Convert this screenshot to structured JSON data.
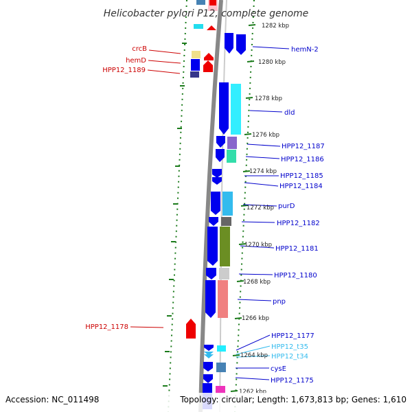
{
  "title": "Helicobacter pylori P12, complete genome",
  "footer": {
    "accession": "Accession: NC_011498",
    "topology": "Topology: circular; Length: 1,673,813 bp; Genes: 1,610"
  },
  "ticks": [
    "1282 kbp",
    "1280 kbp",
    "1278 kbp",
    "1276 kbp",
    "1274 kbp",
    "1272 kbp",
    "1270 kbp",
    "1268 kbp",
    "1266 kbp",
    "1264 kbp",
    "1262 kbp"
  ],
  "left_labels": [
    "crcB",
    "hemD",
    "HPP12_1189",
    "HPP12_1178"
  ],
  "right_labels": [
    "hemN-2",
    "dld",
    "HPP12_1187",
    "HPP12_1186",
    "HPP12_1185",
    "HPP12_1184",
    "purD",
    "HPP12_1182",
    "HPP12_1181",
    "HPP12_1180",
    "pnp",
    "HPP12_1177",
    "HPP12_t35",
    "HPP12_t34",
    "cysE",
    "HPP12_1175"
  ],
  "colors": {
    "forward_gene": "#0000ee",
    "reverse_gene": "#ee0000",
    "trna": "#33ccff",
    "backbone": "#888888",
    "tick_dots": "#1a7a1a",
    "label_blue": "#0000cc",
    "label_red": "#cc0000",
    "label_cyan": "#33bbee"
  }
}
